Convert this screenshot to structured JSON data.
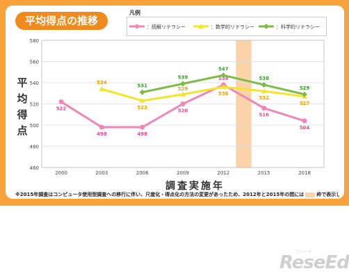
{
  "title": "平均得点の推移",
  "legend_title": "凡例",
  "ylabel": "平均得点",
  "xlabel": "調査実施年",
  "note_before": "※2015年調査はコンピュータ使用型調査への移行に伴い、尺度化・得点化の方法の変更があったため、2012年と2015年の間には",
  "note_after": "枠で表示している。",
  "watermark": "ReseEd",
  "watermark_sub": "リシード",
  "chart_data": {
    "type": "line",
    "x": [
      "2000",
      "2003",
      "2006",
      "2009",
      "2012",
      "2015",
      "2018"
    ],
    "ylim": [
      460,
      580
    ],
    "yticks": [
      460,
      480,
      500,
      520,
      540,
      560,
      580
    ],
    "grid": true,
    "legend_position": "top",
    "highlight_between": [
      "2012",
      "2015"
    ],
    "series": [
      {
        "name": "：読解リテラシー",
        "color": "#ee86b8",
        "marker": "circle",
        "values": [
          522,
          498,
          498,
          520,
          538,
          516,
          504
        ]
      },
      {
        "name": "：数学的リテラシー",
        "color": "#f5e52a",
        "marker": "triangle",
        "values": [
          null,
          534,
          523,
          529,
          536,
          532,
          527
        ]
      },
      {
        "name": "：科学的リテラシー",
        "color": "#7dbb48",
        "marker": "diamond",
        "values": [
          null,
          null,
          531,
          539,
          547,
          538,
          529
        ]
      }
    ],
    "label_colors": [
      "#e84a8f",
      "#eaa20c",
      "#3a9a2a"
    ]
  }
}
